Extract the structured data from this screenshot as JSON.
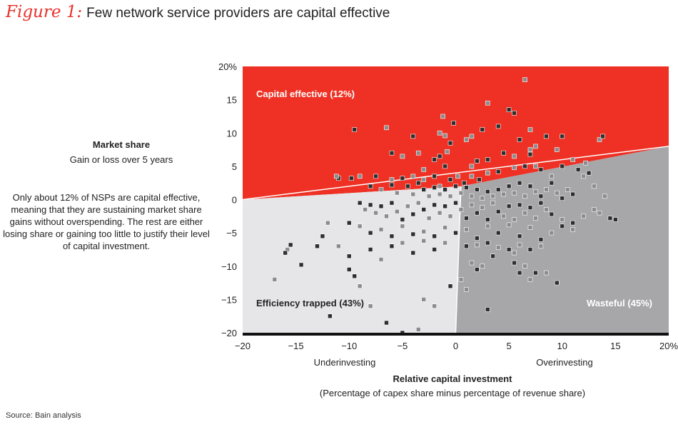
{
  "figure": {
    "label": "Figure 1:",
    "title": "Few network service providers are capital effective"
  },
  "y_axis_title": "Market share",
  "y_axis_subtitle": "Gain or loss over 5 years",
  "note": "Only about 12% of NSPs are capital effective, meaning that they are sustaining market share gains without overspending. The rest are either losing share or gaining too little to justify their level of capital investment.",
  "source": "Source: Bain analysis",
  "colors": {
    "capital_effective": "#ee3124",
    "efficiency_trapped": "#e6e6e8",
    "wasteful": "#a7a7aa",
    "point_dark": "#2e2e30",
    "point_light": "#8c8c8f",
    "point_white": "#e2e2e4"
  },
  "chart_data": {
    "type": "scatter",
    "xlabel": "Relative capital investment",
    "xlabel_sub": "(Percentage of capex share minus percentage of revenue share)",
    "x_side_labels": [
      "Underinvesting",
      "Overinvesting"
    ],
    "xlim": [
      -20,
      20
    ],
    "ylim": [
      -20,
      20
    ],
    "x_ticks": [
      "−20",
      "−15",
      "−10",
      "−5",
      "0",
      "5",
      "10",
      "15",
      "20%"
    ],
    "y_ticks": [
      "20%",
      "15",
      "10",
      "5",
      "0",
      "−5",
      "−10",
      "−15",
      "−20"
    ],
    "regions": [
      {
        "name": "Capital effective (12%)",
        "fill": "#ee3124"
      },
      {
        "name": "Efficiency trapped (43%)",
        "fill": "#e6e6e8"
      },
      {
        "name": "Wasteful (45%)",
        "fill": "#a7a7aa"
      }
    ],
    "boundary_line": [
      [
        -20,
        0
      ],
      [
        20,
        8
      ]
    ],
    "boundary_vertical": [
      [
        0.5,
        2
      ],
      [
        0,
        -20
      ]
    ],
    "points": [
      [
        -9.5,
        10.5,
        0
      ],
      [
        -6.5,
        10.8,
        1
      ],
      [
        -4,
        9.5,
        0
      ],
      [
        -1,
        9.6,
        1
      ],
      [
        -0.2,
        11.5,
        0
      ],
      [
        1.5,
        9.5,
        1
      ],
      [
        2.5,
        10.5,
        0
      ],
      [
        3,
        14.5,
        1
      ],
      [
        5,
        13.5,
        0
      ],
      [
        6.5,
        18,
        1
      ],
      [
        5.5,
        13,
        0
      ],
      [
        7,
        10.5,
        1
      ],
      [
        6,
        9,
        0
      ],
      [
        7,
        7.5,
        1
      ],
      [
        8.5,
        9.5,
        0
      ],
      [
        9.5,
        7.5,
        1
      ],
      [
        10,
        9.5,
        0
      ],
      [
        13.5,
        9,
        1
      ],
      [
        13.8,
        9.5,
        0
      ],
      [
        4,
        11,
        0
      ],
      [
        -1.2,
        12.5,
        1
      ],
      [
        -1.5,
        10,
        1
      ],
      [
        -0.5,
        8.5,
        0
      ],
      [
        1,
        9,
        1
      ],
      [
        -2,
        6,
        0
      ],
      [
        -3.5,
        7,
        1
      ],
      [
        -1.5,
        6.5,
        0
      ],
      [
        -0.8,
        7.2,
        1
      ],
      [
        2,
        5.8,
        0
      ],
      [
        5.5,
        6.5,
        1
      ],
      [
        4.5,
        7,
        0
      ],
      [
        3,
        6,
        0
      ],
      [
        7.5,
        8,
        1
      ],
      [
        7,
        6.8,
        0
      ],
      [
        -5,
        6.5,
        1
      ],
      [
        -6,
        7,
        0
      ],
      [
        -3,
        4.5,
        1
      ],
      [
        -1,
        5,
        0
      ],
      [
        1.5,
        5,
        1
      ],
      [
        -11,
        3.2,
        0
      ],
      [
        -11.2,
        3.5,
        1
      ],
      [
        -9.8,
        3.2,
        0
      ],
      [
        -9,
        3.5,
        1
      ],
      [
        -7.5,
        3.5,
        0
      ],
      [
        -6,
        3,
        1
      ],
      [
        -5,
        3.2,
        0
      ],
      [
        -4,
        3.5,
        1
      ],
      [
        -3.5,
        2.5,
        0
      ],
      [
        -3,
        3,
        1
      ],
      [
        -2,
        3.5,
        0
      ],
      [
        -1.5,
        2,
        1
      ],
      [
        -0.5,
        3,
        0
      ],
      [
        0.2,
        3.5,
        1
      ],
      [
        0.8,
        2.5,
        0
      ],
      [
        1.5,
        3.5,
        1
      ],
      [
        2.2,
        3,
        0
      ],
      [
        3,
        4,
        1
      ],
      [
        4,
        4.2,
        0
      ],
      [
        5.5,
        4.8,
        1
      ],
      [
        6.5,
        5,
        0
      ],
      [
        7.5,
        5,
        1
      ],
      [
        8,
        4.5,
        0
      ],
      [
        9,
        3.5,
        1
      ],
      [
        10,
        5,
        0
      ],
      [
        11,
        6,
        1
      ],
      [
        11.5,
        4.5,
        0
      ],
      [
        12,
        3.5,
        1
      ],
      [
        12.5,
        4,
        0
      ],
      [
        12.2,
        5.5,
        1
      ],
      [
        13,
        2,
        1
      ],
      [
        14,
        0.5,
        1
      ],
      [
        13,
        -1.5,
        1
      ],
      [
        -8,
        2,
        0
      ],
      [
        -7,
        1.5,
        1
      ],
      [
        -6,
        2.2,
        0
      ],
      [
        -5.5,
        1,
        1
      ],
      [
        -4.5,
        2,
        0
      ],
      [
        -4,
        0.8,
        1
      ],
      [
        -3,
        1.5,
        0
      ],
      [
        -2.5,
        0.5,
        1
      ],
      [
        -2,
        1.8,
        0
      ],
      [
        -1.5,
        0.8,
        1
      ],
      [
        -1,
        1.5,
        0
      ],
      [
        -0.5,
        0.5,
        1
      ],
      [
        0,
        2,
        0
      ],
      [
        0.5,
        1,
        1
      ],
      [
        1,
        1.8,
        0
      ],
      [
        1.5,
        0.5,
        1
      ],
      [
        2,
        1.5,
        0
      ],
      [
        2.5,
        0.2,
        1
      ],
      [
        3,
        1.2,
        0
      ],
      [
        3.5,
        0.5,
        1
      ],
      [
        4,
        1.5,
        0
      ],
      [
        4.5,
        0.8,
        1
      ],
      [
        5,
        2,
        0
      ],
      [
        5.5,
        1,
        1
      ],
      [
        6,
        2.5,
        0
      ],
      [
        6.5,
        0.5,
        1
      ],
      [
        7,
        2,
        0
      ],
      [
        7.5,
        1.2,
        1
      ],
      [
        8,
        0.5,
        0
      ],
      [
        8.5,
        1.5,
        1
      ],
      [
        9,
        2.5,
        0
      ],
      [
        9.5,
        1,
        1
      ],
      [
        10,
        0.2,
        0
      ],
      [
        10.5,
        1.5,
        1
      ],
      [
        11,
        0.8,
        0
      ],
      [
        -9,
        -0.5,
        0
      ],
      [
        -8.5,
        -1.5,
        1
      ],
      [
        -8,
        -0.8,
        0
      ],
      [
        -7.5,
        -2,
        1
      ],
      [
        -7,
        -1,
        0
      ],
      [
        -6.5,
        -2.5,
        1
      ],
      [
        -6,
        -0.5,
        0
      ],
      [
        -5.5,
        -1.8,
        1
      ],
      [
        -5,
        -3,
        0
      ],
      [
        -4.5,
        -1,
        1
      ],
      [
        -4,
        -2.2,
        0
      ],
      [
        -3.5,
        -0.5,
        1
      ],
      [
        -3,
        -1.5,
        0
      ],
      [
        -2.5,
        -2.8,
        1
      ],
      [
        -2,
        -0.8,
        0
      ],
      [
        -1.5,
        -2,
        1
      ],
      [
        -1,
        -1,
        0
      ],
      [
        -0.5,
        -2.5,
        1
      ],
      [
        0,
        -0.5,
        0
      ],
      [
        0.5,
        -1.5,
        1
      ],
      [
        1,
        -2.8,
        0
      ],
      [
        1.5,
        -0.8,
        1
      ],
      [
        2,
        -2,
        0
      ],
      [
        2.5,
        -1.2,
        1
      ],
      [
        3,
        -3,
        0
      ],
      [
        3.5,
        -0.5,
        1
      ],
      [
        4,
        -1.8,
        0
      ],
      [
        4.5,
        -2.5,
        1
      ],
      [
        5,
        -1,
        0
      ],
      [
        5.5,
        -3,
        1
      ],
      [
        6,
        -0.8,
        0
      ],
      [
        6.5,
        -2,
        1
      ],
      [
        7,
        -1.2,
        0
      ],
      [
        7.5,
        -2.8,
        1
      ],
      [
        8,
        -0.5,
        0
      ],
      [
        8.5,
        -1.5,
        1
      ],
      [
        9,
        -2.2,
        0
      ],
      [
        10,
        -3,
        1
      ],
      [
        11,
        -3.5,
        0
      ],
      [
        12,
        -2.5,
        1
      ],
      [
        14.5,
        -2.8,
        0
      ],
      [
        15,
        -3,
        0
      ],
      [
        13.5,
        -2,
        1
      ],
      [
        -10,
        -3.5,
        0
      ],
      [
        -9,
        -4,
        1
      ],
      [
        -8,
        -5,
        0
      ],
      [
        -7,
        -4.5,
        1
      ],
      [
        -6,
        -5.5,
        0
      ],
      [
        -5,
        -4,
        1
      ],
      [
        -4,
        -5.2,
        0
      ],
      [
        -3,
        -4.8,
        1
      ],
      [
        -2,
        -5.5,
        0
      ],
      [
        -1,
        -4.2,
        1
      ],
      [
        0,
        -5,
        0
      ],
      [
        1,
        -4.5,
        1
      ],
      [
        2,
        -5.8,
        0
      ],
      [
        3,
        -4,
        1
      ],
      [
        4,
        -5,
        0
      ],
      [
        5,
        -3.8,
        1
      ],
      [
        6,
        -5.5,
        0
      ],
      [
        7,
        -4.2,
        1
      ],
      [
        8,
        -6,
        0
      ],
      [
        9,
        -5,
        1
      ],
      [
        10,
        -4,
        0
      ],
      [
        11,
        -4.5,
        1
      ],
      [
        -12,
        -3.5,
        1
      ],
      [
        -12.5,
        -5.5,
        0
      ],
      [
        -15.5,
        -6.8,
        0
      ],
      [
        -15.8,
        -7.5,
        1
      ],
      [
        -16,
        -8,
        0
      ],
      [
        -13,
        -7,
        0
      ],
      [
        -14.5,
        -9.8,
        0
      ],
      [
        -11,
        -7,
        1
      ],
      [
        -10,
        -8.5,
        0
      ],
      [
        -8,
        -7.5,
        0
      ],
      [
        -7,
        -9,
        1
      ],
      [
        -6,
        -7,
        0
      ],
      [
        -5,
        -6.5,
        1
      ],
      [
        -4,
        -8,
        0
      ],
      [
        -3,
        -6.2,
        1
      ],
      [
        -2,
        -7.5,
        0
      ],
      [
        -1,
        -6.5,
        1
      ],
      [
        1,
        -7,
        0
      ],
      [
        2,
        -6.8,
        1
      ],
      [
        3,
        -6.5,
        0
      ],
      [
        4,
        -7.2,
        1
      ],
      [
        5,
        -7.5,
        0
      ],
      [
        6,
        -6.8,
        1
      ],
      [
        7,
        -7.5,
        0
      ],
      [
        8,
        -7,
        1
      ],
      [
        3.5,
        -8.5,
        0
      ],
      [
        2.5,
        -10,
        1
      ],
      [
        5.5,
        -9.5,
        0
      ],
      [
        6.5,
        -10,
        1
      ],
      [
        7.5,
        -11,
        0
      ],
      [
        8.5,
        -11,
        1
      ],
      [
        9.5,
        -12.5,
        0
      ],
      [
        5.5,
        -8,
        1
      ],
      [
        6,
        -11,
        0
      ],
      [
        7,
        -12,
        1
      ],
      [
        2,
        -10.5,
        0
      ],
      [
        1.5,
        -9.5,
        1
      ],
      [
        -17,
        -12,
        1
      ],
      [
        -9.5,
        -11.5,
        0
      ],
      [
        -9,
        -13,
        1
      ],
      [
        -10,
        -10.5,
        0
      ],
      [
        -11.8,
        -17.5,
        0
      ],
      [
        -8,
        -16,
        1
      ],
      [
        -6.5,
        -18.5,
        0
      ],
      [
        -5,
        -20,
        0
      ],
      [
        -3.5,
        -19.5,
        1
      ],
      [
        -3,
        -15,
        1
      ],
      [
        -2,
        -16,
        1
      ],
      [
        1,
        -13.5,
        1
      ],
      [
        3,
        -16.5,
        0
      ],
      [
        -0.5,
        -13,
        0
      ],
      [
        0.5,
        -12,
        1
      ]
    ]
  }
}
